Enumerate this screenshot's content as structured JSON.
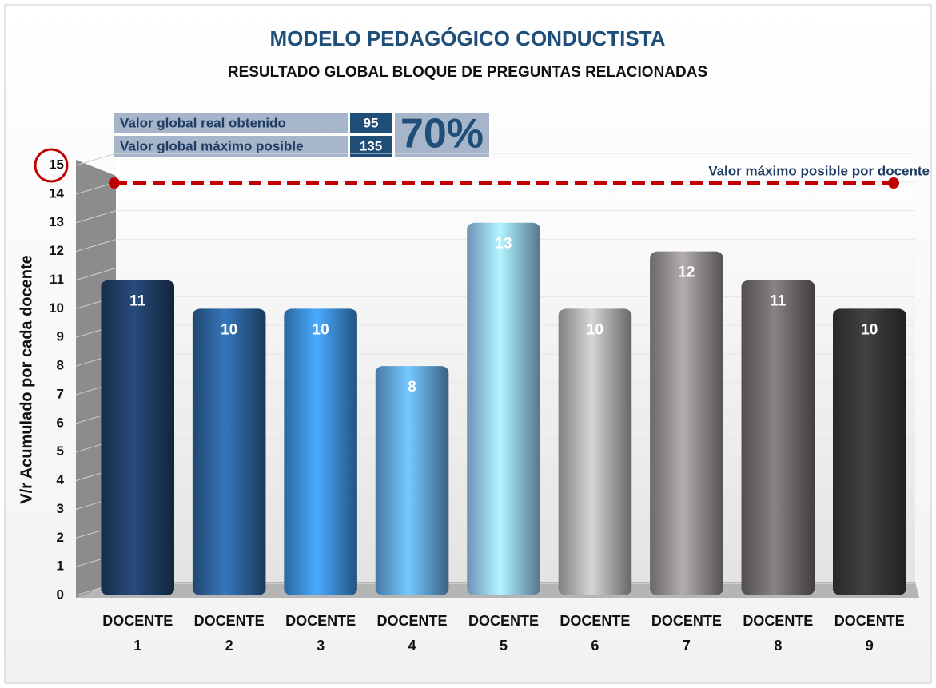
{
  "chart_data": {
    "type": "bar",
    "title": "MODELO PEDAGÓGICO CONDUCTISTA",
    "subtitle": "RESULTADO GLOBAL BLOQUE DE PREGUNTAS RELACIONADAS",
    "y_label": "V/r Acumulado por cada docente",
    "categories": [
      "DOCENTE 1",
      "DOCENTE 2",
      "DOCENTE 3",
      "DOCENTE 4",
      "DOCENTE 5",
      "DOCENTE 6",
      "DOCENTE 7",
      "DOCENTE 8",
      "DOCENTE 9"
    ],
    "values": [
      11,
      10,
      10,
      8,
      13,
      10,
      12,
      11,
      10
    ],
    "colors": [
      "#1f3c63",
      "#2a5f96",
      "#3b89d6",
      "#5ea1dd",
      "#8ec4f0",
      "#ababab",
      "#8f8a8a",
      "#6d6868",
      "#353535"
    ],
    "ylim": [
      0,
      15
    ],
    "yticks": [
      0,
      1,
      2,
      3,
      4,
      5,
      6,
      7,
      8,
      9,
      10,
      11,
      12,
      13,
      14,
      15
    ],
    "grid": true,
    "reference_line": {
      "value": 15,
      "label": "Valor máximo posible por docente",
      "color": "#c00000"
    },
    "summary": {
      "rows": [
        {
          "label": "Valor global real obtenido",
          "value": 95
        },
        {
          "label": "Valor global máximo posible",
          "value": 135
        }
      ],
      "percent": "70%"
    }
  }
}
